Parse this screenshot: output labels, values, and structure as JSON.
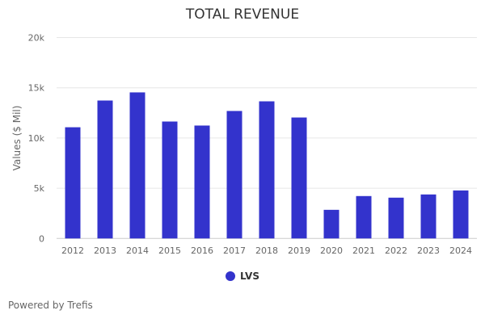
{
  "chart_data": {
    "type": "bar",
    "title": "TOTAL REVENUE",
    "xlabel": "",
    "ylabel": "Values ($ Mil)",
    "ylim": [
      0,
      20000
    ],
    "yticks": [
      0,
      5000,
      10000,
      15000,
      20000
    ],
    "ytick_labels": [
      "0",
      "5k",
      "10k",
      "15k",
      "20k"
    ],
    "grid": true,
    "categories": [
      "2012",
      "2013",
      "2014",
      "2015",
      "2016",
      "2017",
      "2018",
      "2019",
      "2020",
      "2021",
      "2022",
      "2023",
      "2024"
    ],
    "series": [
      {
        "name": "LVS",
        "color": "#3333cc",
        "values": [
          11070,
          13730,
          14540,
          11640,
          11240,
          12690,
          13650,
          12040,
          2850,
          4220,
          4060,
          4380,
          4780
        ]
      }
    ],
    "legend": "bottom-center"
  },
  "footer": {
    "credit": "Powered by Trefis"
  }
}
